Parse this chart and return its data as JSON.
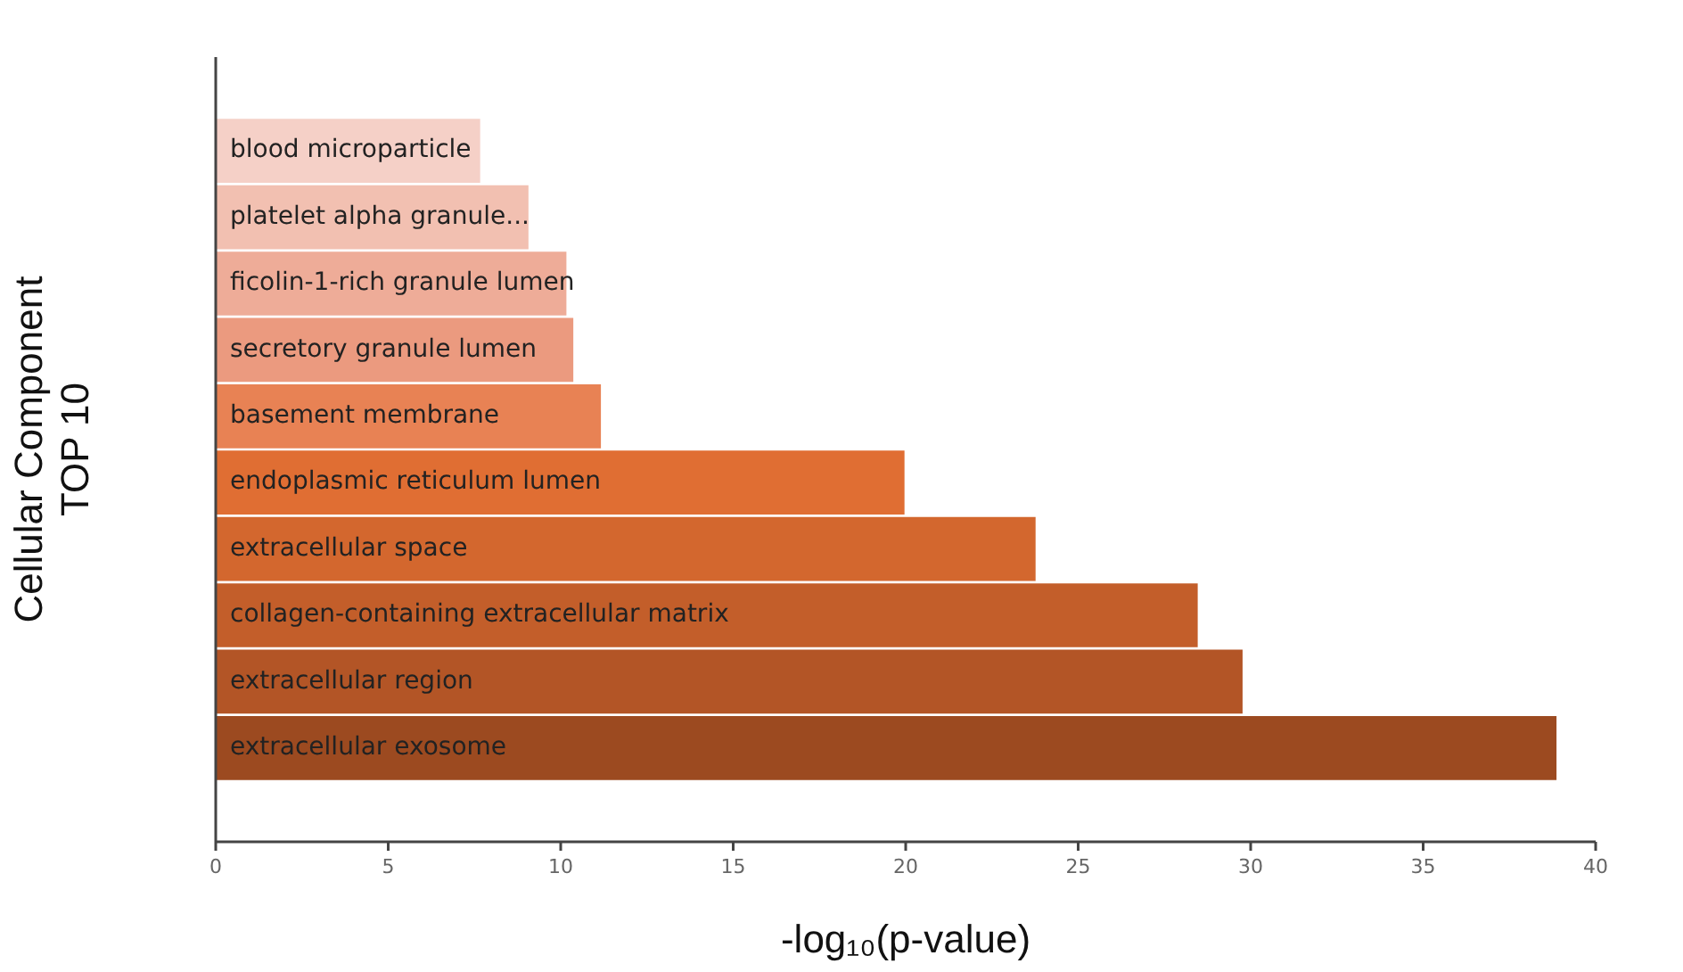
{
  "chart_data": {
    "type": "bar",
    "orientation": "horizontal",
    "xlabel": "-log₁₀(p-value)",
    "ylabel": "Cellular Component\nTOP 10",
    "categories": [
      "blood microparticle",
      "platelet alpha granule...",
      "ficolin-1-rich granule lumen",
      "secretory granule lumen",
      "basement membrane",
      "endoplasmic reticulum lumen",
      "extracellular space",
      "collagen-containing extracellular matrix",
      "extracellular region",
      "extracellular exosome"
    ],
    "values": [
      7.7,
      9.1,
      10.2,
      10.4,
      11.2,
      20.0,
      23.8,
      28.5,
      29.8,
      38.9
    ],
    "colors": [
      "#f5d0c7",
      "#f2c0b1",
      "#eeac98",
      "#eb9a7f",
      "#e88254",
      "#e06e33",
      "#d3672e",
      "#c35e2a",
      "#b35526",
      "#9c4a20"
    ],
    "xlim": [
      0,
      40
    ],
    "xticks": [
      0,
      5,
      10,
      15,
      20,
      25,
      30,
      35,
      40
    ],
    "grid": false,
    "legend": false
  }
}
